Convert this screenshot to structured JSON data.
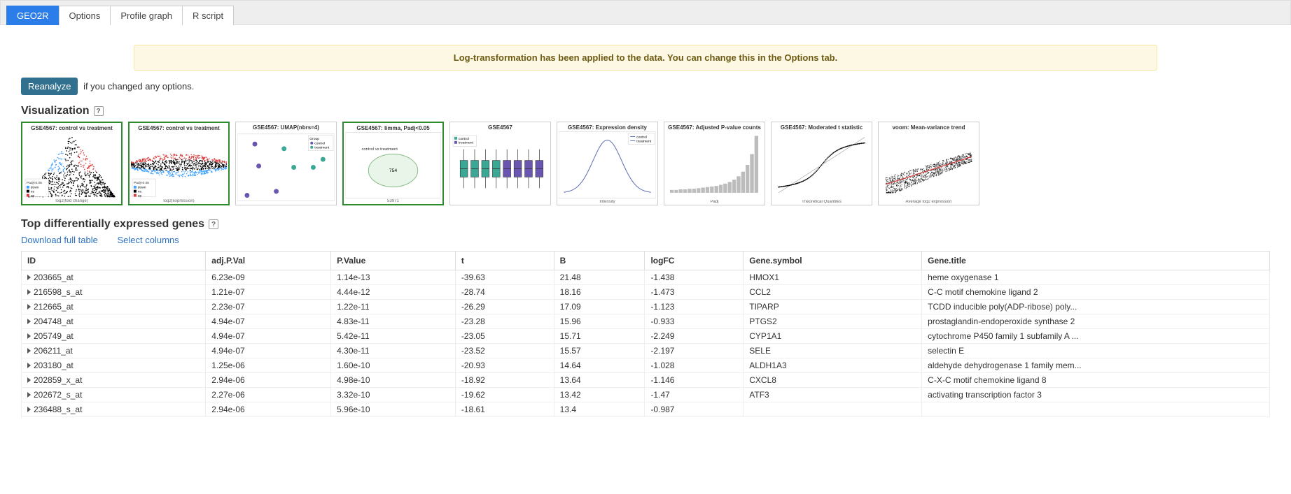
{
  "tabs": [
    {
      "label": "GEO2R",
      "active": true
    },
    {
      "label": "Options",
      "active": false
    },
    {
      "label": "Profile graph",
      "active": false
    },
    {
      "label": "R script",
      "active": false
    }
  ],
  "notice": "Log-transformation has been applied to the data. You can change this in the Options tab.",
  "reanalyze": {
    "button": "Reanalyze",
    "suffix": "if you changed any options."
  },
  "visualization": {
    "title": "Visualization",
    "plots": [
      {
        "key": "volcano",
        "title": "GSE4567: control vs treatment",
        "xlabel": "log2(fold change)",
        "selected": true
      },
      {
        "key": "md",
        "title": "GSE4567: control vs treatment",
        "xlabel": "log2(expression)",
        "selected": true
      },
      {
        "key": "umap",
        "title": "GSE4567: UMAP(nbrs=4)",
        "xlabel": "",
        "selected": false
      },
      {
        "key": "venn",
        "title": "GSE4567: limma, Padj<0.05",
        "xlabel": "53971",
        "selected": true
      },
      {
        "key": "box",
        "title": "GSE4567",
        "xlabel": "",
        "selected": false
      },
      {
        "key": "density",
        "title": "GSE4567: Expression density",
        "xlabel": "Intensity",
        "selected": false
      },
      {
        "key": "hist",
        "title": "GSE4567: Adjusted P-value counts",
        "xlabel": "Padj",
        "selected": false
      },
      {
        "key": "qq",
        "title": "GSE4567: Moderated t statistic",
        "xlabel": "Theoretical Quantiles",
        "selected": false
      },
      {
        "key": "voom",
        "title": "voom: Mean-variance trend",
        "xlabel": "Average log2 expression",
        "selected": false
      }
    ]
  },
  "top_genes": {
    "title": "Top differentially expressed genes",
    "links": {
      "download": "Download full table",
      "select_cols": "Select columns"
    },
    "columns": [
      "ID",
      "adj.P.Val",
      "P.Value",
      "t",
      "B",
      "logFC",
      "Gene.symbol",
      "Gene.title"
    ],
    "rows": [
      [
        "203665_at",
        "6.23e-09",
        "1.14e-13",
        "-39.63",
        "21.48",
        "-1.438",
        "HMOX1",
        "heme oxygenase 1"
      ],
      [
        "216598_s_at",
        "1.21e-07",
        "4.44e-12",
        "-28.74",
        "18.16",
        "-1.473",
        "CCL2",
        "C-C motif chemokine ligand 2"
      ],
      [
        "212665_at",
        "2.23e-07",
        "1.22e-11",
        "-26.29",
        "17.09",
        "-1.123",
        "TIPARP",
        "TCDD inducible poly(ADP-ribose) poly..."
      ],
      [
        "204748_at",
        "4.94e-07",
        "4.83e-11",
        "-23.28",
        "15.96",
        "-0.933",
        "PTGS2",
        "prostaglandin-endoperoxide synthase 2"
      ],
      [
        "205749_at",
        "4.94e-07",
        "5.42e-11",
        "-23.05",
        "15.71",
        "-2.249",
        "CYP1A1",
        "cytochrome P450 family 1 subfamily A ..."
      ],
      [
        "206211_at",
        "4.94e-07",
        "4.30e-11",
        "-23.52",
        "15.57",
        "-2.197",
        "SELE",
        "selectin E"
      ],
      [
        "203180_at",
        "1.25e-06",
        "1.60e-10",
        "-20.93",
        "14.64",
        "-1.028",
        "ALDH1A3",
        "aldehyde dehydrogenase 1 family mem..."
      ],
      [
        "202859_x_at",
        "2.94e-06",
        "4.98e-10",
        "-18.92",
        "13.64",
        "-1.146",
        "CXCL8",
        "C-X-C motif chemokine ligand 8"
      ],
      [
        "202672_s_at",
        "2.27e-06",
        "3.32e-10",
        "-19.62",
        "13.42",
        "-1.47",
        "ATF3",
        "activating transcription factor 3"
      ],
      [
        "236488_s_at",
        "2.94e-06",
        "5.96e-10",
        "-18.61",
        "13.4",
        "-0.987",
        "",
        ""
      ]
    ]
  },
  "plot_render": {
    "volcano": {
      "type": "scatter",
      "background": "#ffffff",
      "glyph_colors": {
        "down": "#3fa0ff",
        "ns": "#000000",
        "up": "#d93a3a"
      },
      "legend_items": [
        "Padj<0.05",
        "down",
        "ns",
        "up"
      ],
      "legend_pos": "bottom-left"
    },
    "md": {
      "type": "scatter",
      "background": "#ffffff",
      "glyph_colors": {
        "down": "#3fa0ff",
        "ns": "#000000",
        "up": "#d93a3a"
      },
      "legend_items": [
        "Padj<0.05",
        "down",
        "ns",
        "up"
      ],
      "legend_pos": "bottom-left"
    },
    "umap": {
      "type": "scatter-cat",
      "background": "#ffffff",
      "points": [
        {
          "x": 0.18,
          "y": 0.15,
          "c": "#6a55b0"
        },
        {
          "x": 0.48,
          "y": 0.22,
          "c": "#3aa895"
        },
        {
          "x": 0.88,
          "y": 0.38,
          "c": "#3aa895"
        },
        {
          "x": 0.22,
          "y": 0.48,
          "c": "#6a55b0"
        },
        {
          "x": 0.58,
          "y": 0.5,
          "c": "#3aa895"
        },
        {
          "x": 0.4,
          "y": 0.86,
          "c": "#6a55b0"
        },
        {
          "x": 0.78,
          "y": 0.5,
          "c": "#3aa895"
        },
        {
          "x": 0.1,
          "y": 0.92,
          "c": "#6a55b0"
        }
      ],
      "legend_items": [
        "Group",
        "control",
        "treatment"
      ],
      "legend_pos": "top-right"
    },
    "venn": {
      "type": "venn",
      "background": "#ffffff",
      "circle_fill": "#e8f5e8",
      "circle_stroke": "#88bb88",
      "center_label": "754",
      "top_label": "control vs\ntreatment"
    },
    "box": {
      "type": "boxplot",
      "background": "#ffffff",
      "n": 8,
      "colors": [
        "#3aa895",
        "#3aa895",
        "#3aa895",
        "#3aa895",
        "#6a55b0",
        "#6a55b0",
        "#6a55b0",
        "#6a55b0"
      ],
      "legend_items": [
        "control",
        "treatment"
      ],
      "legend_pos": "top-left"
    },
    "density": {
      "type": "density",
      "background": "#ffffff",
      "line_color": "#5a6ab0",
      "legend_items": [
        "control",
        "treatment"
      ],
      "legend_pos": "top-right"
    },
    "hist": {
      "type": "histogram",
      "background": "#ffffff",
      "bar_color": "#bcbcbc",
      "heights": [
        0.05,
        0.05,
        0.06,
        0.06,
        0.07,
        0.07,
        0.08,
        0.09,
        0.1,
        0.11,
        0.12,
        0.14,
        0.16,
        0.19,
        0.23,
        0.29,
        0.37,
        0.49,
        0.68,
        1.0
      ]
    },
    "qq": {
      "type": "qq",
      "background": "#ffffff",
      "point_color": "#000000"
    },
    "voom": {
      "type": "scatter-dense",
      "background": "#ffffff",
      "point_color": "#000000",
      "trend_color": "#d93a3a"
    }
  }
}
